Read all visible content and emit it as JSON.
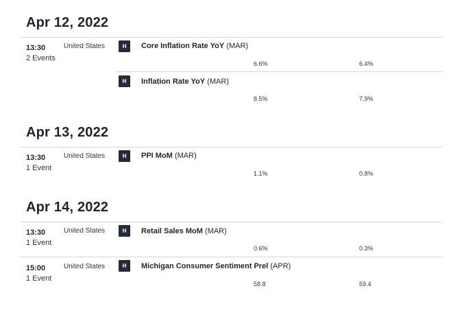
{
  "days": [
    {
      "date": "Apr 12, 2022",
      "groups": [
        {
          "time": "13:30",
          "count": "2 Events",
          "country": "United States",
          "events": [
            {
              "importance": "H",
              "name": "Core Inflation Rate YoY",
              "period": "(MAR)",
              "actual": "6.6%",
              "previous": "6.4%"
            },
            {
              "importance": "H",
              "name": "Inflation Rate YoY",
              "period": "(MAR)",
              "actual": "8.5%",
              "previous": "7.9%"
            }
          ]
        }
      ]
    },
    {
      "date": "Apr 13, 2022",
      "groups": [
        {
          "time": "13:30",
          "count": "1 Event",
          "country": "United States",
          "events": [
            {
              "importance": "H",
              "name": "PPI MoM",
              "period": "(MAR)",
              "actual": "1.1%",
              "previous": "0.8%"
            }
          ]
        }
      ]
    },
    {
      "date": "Apr 14, 2022",
      "groups": [
        {
          "time": "13:30",
          "count": "1 Event",
          "country": "United States",
          "events": [
            {
              "importance": "H",
              "name": "Retail Sales MoM",
              "period": "(MAR)",
              "actual": "0.6%",
              "previous": "0.3%"
            }
          ]
        },
        {
          "time": "15:00",
          "count": "1 Event",
          "country": "United States",
          "events": [
            {
              "importance": "H",
              "name": "Michigan Consumer Sentiment Prel",
              "period": "(APR)",
              "actual": "58.8",
              "previous": "59.4"
            }
          ]
        }
      ]
    }
  ]
}
